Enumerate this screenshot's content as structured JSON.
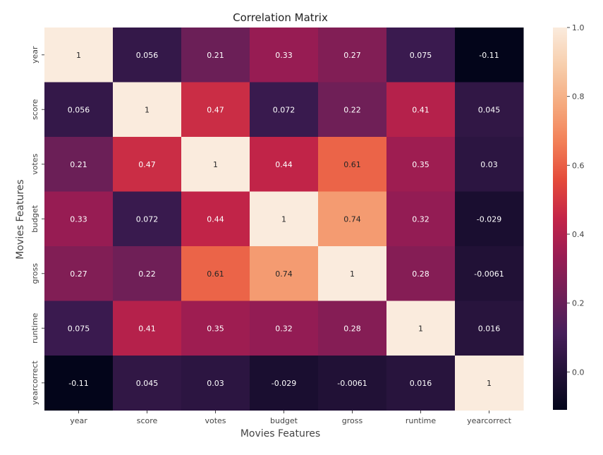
{
  "chart_data": {
    "type": "heatmap",
    "title": "Correlation Matrix",
    "xlabel": "Movies Features",
    "ylabel": "Movies Features",
    "x_categories": [
      "year",
      "score",
      "votes",
      "budget",
      "gross",
      "runtime",
      "yearcorrect"
    ],
    "y_categories": [
      "year",
      "score",
      "votes",
      "budget",
      "gross",
      "runtime",
      "yearcorrect"
    ],
    "values": [
      [
        1,
        0.056,
        0.21,
        0.33,
        0.27,
        0.075,
        -0.11
      ],
      [
        0.056,
        1,
        0.47,
        0.072,
        0.22,
        0.41,
        0.045
      ],
      [
        0.21,
        0.47,
        1,
        0.44,
        0.61,
        0.35,
        0.03
      ],
      [
        0.33,
        0.072,
        0.44,
        1,
        0.74,
        0.32,
        -0.029
      ],
      [
        0.27,
        0.22,
        0.61,
        0.74,
        1,
        0.28,
        -0.0061
      ],
      [
        0.075,
        0.41,
        0.35,
        0.32,
        0.28,
        1,
        0.016
      ],
      [
        -0.11,
        0.045,
        0.03,
        -0.029,
        -0.0061,
        0.016,
        1
      ]
    ],
    "annotations": [
      [
        "1",
        "0.056",
        "0.21",
        "0.33",
        "0.27",
        "0.075",
        "-0.11"
      ],
      [
        "0.056",
        "1",
        "0.47",
        "0.072",
        "0.22",
        "0.41",
        "0.045"
      ],
      [
        "0.21",
        "0.47",
        "1",
        "0.44",
        "0.61",
        "0.35",
        "0.03"
      ],
      [
        "0.33",
        "0.072",
        "0.44",
        "1",
        "0.74",
        "0.32",
        "-0.029"
      ],
      [
        "0.27",
        "0.22",
        "0.61",
        "0.74",
        "1",
        "0.28",
        "-0.0061"
      ],
      [
        "0.075",
        "0.41",
        "0.35",
        "0.32",
        "0.28",
        "1",
        "0.016"
      ],
      [
        "-0.11",
        "0.045",
        "0.03",
        "-0.029",
        "-0.0061",
        "0.016",
        "1"
      ]
    ],
    "colorbar": {
      "colormap": "rocket",
      "vmin": -0.11,
      "vmax": 1.0,
      "ticks": [
        0.0,
        0.2,
        0.4,
        0.6,
        0.8,
        1.0
      ],
      "tick_labels": [
        "0.0",
        "0.2",
        "0.4",
        "0.6",
        "0.8",
        "1.0"
      ]
    },
    "grid": false
  }
}
